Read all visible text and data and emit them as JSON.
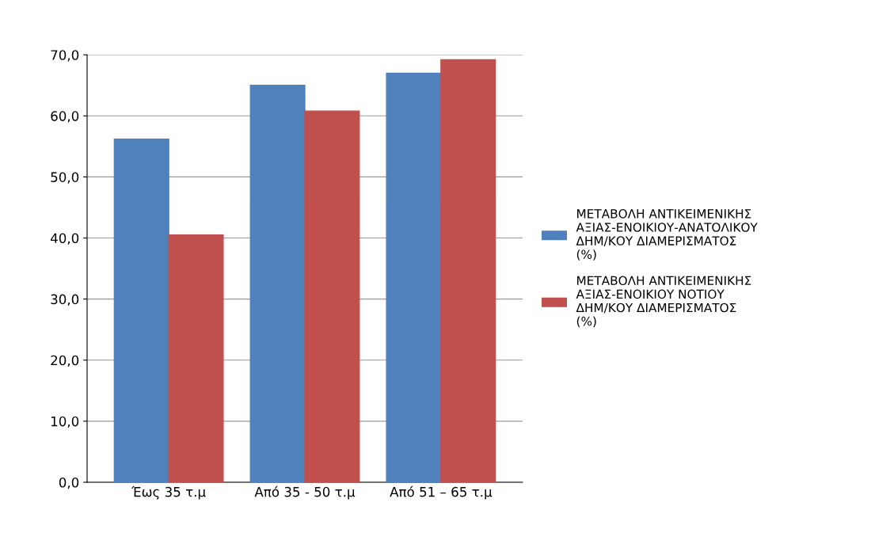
{
  "chart_data": {
    "type": "bar",
    "categories": [
      "Έως 35 τ.μ",
      "Από 35 - 50 τ.μ",
      "Από 51 – 65 τ.μ"
    ],
    "series": [
      {
        "name": "ΜΕΤΑΒΟΛΗ ΑΝΤΙΚΕΙΜΕΝΙΚΗΣ ΑΞΙΑΣ-ΕΝΟΙΚΙΟΥ-ΑΝΑΤΟΛΙΚΟΥ ΔΗΜ/ΚΟΥ ΔΙΑΜΕΡΙΣΜΑΤΟΣ (%)",
        "color": "#4f81bd",
        "values": [
          56.2,
          65.0,
          67.0
        ]
      },
      {
        "name": "ΜΕΤΑΒΟΛΗ ΑΝΤΙΚΕΙΜΕΝΙΚΗΣ ΑΞΙΑΣ-ΕΝΟΙΚΙΟΥ ΝΟΤΙΟΥ ΔΗΜ/ΚΟΥ ΔΙΑΜΕΡΙΣΜΑΤΟΣ (%)",
        "color": "#c0504d",
        "values": [
          40.5,
          60.8,
          69.2
        ]
      }
    ],
    "ylim": [
      0,
      70
    ],
    "yticks": [
      {
        "value": 0,
        "label": "0,0"
      },
      {
        "value": 10,
        "label": "10,0"
      },
      {
        "value": 20,
        "label": "20,0"
      },
      {
        "value": 30,
        "label": "30,0"
      },
      {
        "value": 40,
        "label": "40,0"
      },
      {
        "value": 50,
        "label": "50,0"
      },
      {
        "value": 60,
        "label": "60,0"
      },
      {
        "value": 70,
        "label": "70,0"
      }
    ],
    "grid": "y",
    "legend": "right"
  }
}
